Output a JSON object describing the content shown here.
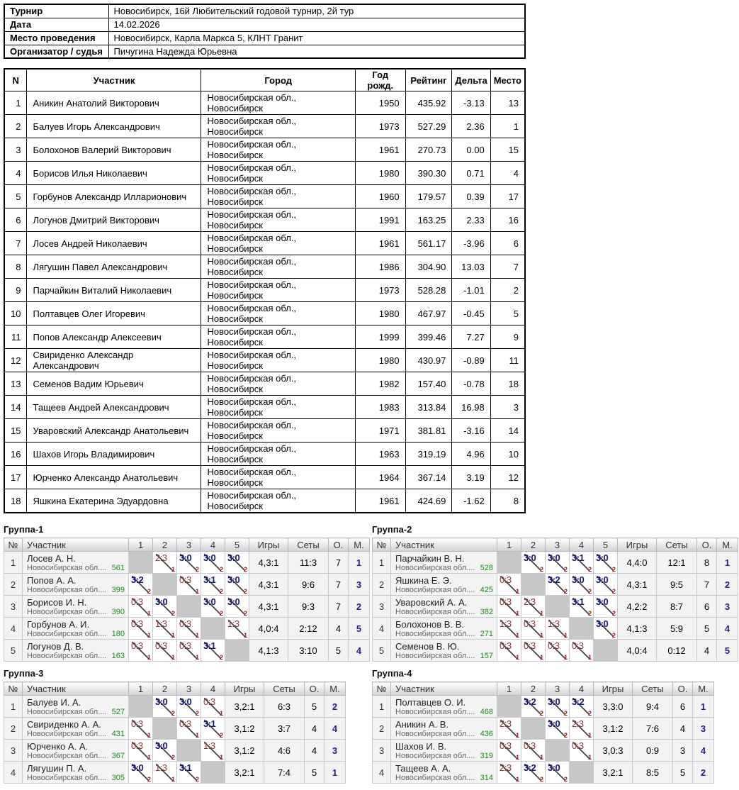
{
  "info": {
    "rows": [
      {
        "label": "Турнир",
        "value": "Новосибирск, 16й Любительский годовой турнир, 2й тур"
      },
      {
        "label": "Дата",
        "value": "14.02.2026"
      },
      {
        "label": "Место проведения",
        "value": "Новосибирск, Карла Маркса 5, КЛНТ Гранит"
      },
      {
        "label": "Организатор / судья",
        "value": "Пичугина Надежда Юрьевна"
      }
    ]
  },
  "standings": {
    "headers": [
      "N",
      "Участник",
      "Город",
      "Год рожд.",
      "Рейтинг",
      "Дельта",
      "Место"
    ],
    "rows": [
      [
        "1",
        "Аникин Анатолий Викторович",
        "Новосибирская обл., Новосибирск",
        "1950",
        "435.92",
        "-3.13",
        "13"
      ],
      [
        "2",
        "Балуев Игорь Александрович",
        "Новосибирская обл., Новосибирск",
        "1973",
        "527.29",
        "2.36",
        "1"
      ],
      [
        "3",
        "Болохонов Валерий Викторович",
        "Новосибирская обл., Новосибирск",
        "1961",
        "270.73",
        "0.00",
        "15"
      ],
      [
        "4",
        "Борисов Илья Николаевич",
        "Новосибирская обл., Новосибирск",
        "1980",
        "390.30",
        "0.71",
        "4"
      ],
      [
        "5",
        "Горбунов Александр Илларионович",
        "Новосибирская обл., Новосибирск",
        "1960",
        "179.57",
        "0.39",
        "17"
      ],
      [
        "6",
        "Логунов Дмитрий Викторович",
        "Новосибирская обл., Новосибирск",
        "1991",
        "163.25",
        "2.33",
        "16"
      ],
      [
        "7",
        "Лосев Андрей Николаевич",
        "Новосибирская обл., Новосибирск",
        "1961",
        "561.17",
        "-3.96",
        "6"
      ],
      [
        "8",
        "Лягушин Павел Александрович",
        "Новосибирская обл., Новосибирск",
        "1986",
        "304.90",
        "13.03",
        "7"
      ],
      [
        "9",
        "Парчайкин Виталий Николаевич",
        "Новосибирская обл., Новосибирск",
        "1973",
        "528.28",
        "-1.01",
        "2"
      ],
      [
        "10",
        "Полтавцев Олег Игоревич",
        "Новосибирская обл., Новосибирск",
        "1980",
        "467.97",
        "-0.45",
        "5"
      ],
      [
        "11",
        "Попов Александр Алексеевич",
        "Новосибирская обл., Новосибирск",
        "1999",
        "399.46",
        "7.27",
        "9"
      ],
      [
        "12",
        "Свириденко Александр Александрович",
        "Новосибирская обл., Новосибирск",
        "1980",
        "430.97",
        "-0.89",
        "11"
      ],
      [
        "13",
        "Семенов Вадим Юрьевич",
        "Новосибирская обл., Новосибирск",
        "1982",
        "157.40",
        "-0.78",
        "18"
      ],
      [
        "14",
        "Тащеев Андрей Александрович",
        "Новосибирская обл., Новосибирск",
        "1983",
        "313.84",
        "16.98",
        "3"
      ],
      [
        "15",
        "Уваровский Александр Анатольевич",
        "Новосибирская обл., Новосибирск",
        "1971",
        "381.81",
        "-3.16",
        "14"
      ],
      [
        "16",
        "Шахов Игорь Владимирович",
        "Новосибирская обл., Новосибирск",
        "1963",
        "319.19",
        "4.96",
        "10"
      ],
      [
        "17",
        "Юрченко Александр Анатольевич",
        "Новосибирская обл., Новосибирск",
        "1964",
        "367.14",
        "3.19",
        "12"
      ],
      [
        "18",
        "Яшкина Екатерина Эдуардовна",
        "Новосибирская обл., Новосибирск",
        "1961",
        "424.69",
        "-1.62",
        "8"
      ]
    ]
  },
  "group_columns": {
    "num": "№",
    "participant": "Участник",
    "games": "Игры",
    "sets": "Сеты",
    "points": "О.",
    "place": "М."
  },
  "colors": {
    "win_score": "#15157d",
    "loss_score": "#8d3535",
    "match_points": "#9b1515",
    "rating": "#1a8c1a",
    "place": "#22228c",
    "self_cell": "#c7c7c7"
  },
  "groups": [
    {
      "title": "Группа-1",
      "round_columns": [
        "1",
        "2",
        "3",
        "4",
        "5"
      ],
      "rows": [
        {
          "num": "1",
          "name": "Лосев А. Н.",
          "region": "Новосибирская обл....",
          "rating": "561",
          "cells": [
            null,
            {
              "score": "2:3",
              "pts": "1",
              "win": false
            },
            {
              "score": "3:0",
              "pts": "2",
              "win": true
            },
            {
              "score": "3:0",
              "pts": "2",
              "win": true
            },
            {
              "score": "3:0",
              "pts": "2",
              "win": true
            }
          ],
          "games": "4,3:1",
          "sets": "11:3",
          "points": "7",
          "place": "1"
        },
        {
          "num": "2",
          "name": "Попов А. А.",
          "region": "Новосибирская обл....",
          "rating": "399",
          "cells": [
            {
              "score": "3:2",
              "pts": "2",
              "win": true
            },
            null,
            {
              "score": "0:3",
              "pts": "1",
              "win": false
            },
            {
              "score": "3:1",
              "pts": "2",
              "win": true
            },
            {
              "score": "3:0",
              "pts": "2",
              "win": true
            }
          ],
          "games": "4,3:1",
          "sets": "9:6",
          "points": "7",
          "place": "3"
        },
        {
          "num": "3",
          "name": "Борисов И. Н.",
          "region": "Новосибирская обл....",
          "rating": "390",
          "cells": [
            {
              "score": "0:3",
              "pts": "1",
              "win": false
            },
            {
              "score": "3:0",
              "pts": "2",
              "win": true
            },
            null,
            {
              "score": "3:0",
              "pts": "2",
              "win": true
            },
            {
              "score": "3:0",
              "pts": "2",
              "win": true
            }
          ],
          "games": "4,3:1",
          "sets": "9:3",
          "points": "7",
          "place": "2"
        },
        {
          "num": "4",
          "name": "Горбунов А. И.",
          "region": "Новосибирская обл....",
          "rating": "180",
          "cells": [
            {
              "score": "0:3",
              "pts": "1",
              "win": false
            },
            {
              "score": "1:3",
              "pts": "1",
              "win": false
            },
            {
              "score": "0:3",
              "pts": "1",
              "win": false
            },
            null,
            {
              "score": "1:3",
              "pts": "1",
              "win": false
            }
          ],
          "games": "4,0:4",
          "sets": "2:12",
          "points": "4",
          "place": "5"
        },
        {
          "num": "5",
          "name": "Логунов Д. В.",
          "region": "Новосибирская обл....",
          "rating": "163",
          "cells": [
            {
              "score": "0:3",
              "pts": "1",
              "win": false
            },
            {
              "score": "0:3",
              "pts": "1",
              "win": false
            },
            {
              "score": "0:3",
              "pts": "1",
              "win": false
            },
            {
              "score": "3:1",
              "pts": "2",
              "win": true
            },
            null
          ],
          "games": "4,1:3",
          "sets": "3:10",
          "points": "5",
          "place": "4"
        }
      ]
    },
    {
      "title": "Группа-2",
      "round_columns": [
        "1",
        "2",
        "3",
        "4",
        "5"
      ],
      "rows": [
        {
          "num": "1",
          "name": "Парчайкин В. Н.",
          "region": "Новосибирская обл....",
          "rating": "528",
          "cells": [
            null,
            {
              "score": "3:0",
              "pts": "2",
              "win": true
            },
            {
              "score": "3:0",
              "pts": "2",
              "win": true
            },
            {
              "score": "3:1",
              "pts": "2",
              "win": true
            },
            {
              "score": "3:0",
              "pts": "2",
              "win": true
            }
          ],
          "games": "4,4:0",
          "sets": "12:1",
          "points": "8",
          "place": "1"
        },
        {
          "num": "2",
          "name": "Яшкина Е. Э.",
          "region": "Новосибирская обл....",
          "rating": "425",
          "cells": [
            {
              "score": "0:3",
              "pts": "1",
              "win": false
            },
            null,
            {
              "score": "3:2",
              "pts": "2",
              "win": true
            },
            {
              "score": "3:0",
              "pts": "2",
              "win": true
            },
            {
              "score": "3:0",
              "pts": "2",
              "win": true
            }
          ],
          "games": "4,3:1",
          "sets": "9:5",
          "points": "7",
          "place": "2"
        },
        {
          "num": "3",
          "name": "Уваровский А. А.",
          "region": "Новосибирская обл....",
          "rating": "382",
          "cells": [
            {
              "score": "0:3",
              "pts": "1",
              "win": false
            },
            {
              "score": "2:3",
              "pts": "1",
              "win": false
            },
            null,
            {
              "score": "3:1",
              "pts": "2",
              "win": true
            },
            {
              "score": "3:0",
              "pts": "2",
              "win": true
            }
          ],
          "games": "4,2:2",
          "sets": "8:7",
          "points": "6",
          "place": "3"
        },
        {
          "num": "4",
          "name": "Болохонов В. В.",
          "region": "Новосибирская обл....",
          "rating": "271",
          "cells": [
            {
              "score": "1:3",
              "pts": "1",
              "win": false
            },
            {
              "score": "0:3",
              "pts": "1",
              "win": false
            },
            {
              "score": "1:3",
              "pts": "1",
              "win": false
            },
            null,
            {
              "score": "3:0",
              "pts": "2",
              "win": true
            }
          ],
          "games": "4,1:3",
          "sets": "5:9",
          "points": "5",
          "place": "4"
        },
        {
          "num": "5",
          "name": "Семенов В. Ю.",
          "region": "Новосибирская обл....",
          "rating": "157",
          "cells": [
            {
              "score": "0:3",
              "pts": "1",
              "win": false
            },
            {
              "score": "0:3",
              "pts": "1",
              "win": false
            },
            {
              "score": "0:3",
              "pts": "1",
              "win": false
            },
            {
              "score": "0:3",
              "pts": "1",
              "win": false
            },
            null
          ],
          "games": "4,0:4",
          "sets": "0:12",
          "points": "4",
          "place": "5"
        }
      ]
    },
    {
      "title": "Группа-3",
      "round_columns": [
        "1",
        "2",
        "3",
        "4"
      ],
      "rows": [
        {
          "num": "1",
          "name": "Балуев И. А.",
          "region": "Новосибирская обл....",
          "rating": "527",
          "cells": [
            null,
            {
              "score": "3:0",
              "pts": "2",
              "win": true
            },
            {
              "score": "3:0",
              "pts": "2",
              "win": true
            },
            {
              "score": "0:3",
              "pts": "1",
              "win": false
            }
          ],
          "games": "3,2:1",
          "sets": "6:3",
          "points": "5",
          "place": "2"
        },
        {
          "num": "2",
          "name": "Свириденко А. А.",
          "region": "Новосибирская обл....",
          "rating": "431",
          "cells": [
            {
              "score": "0:3",
              "pts": "1",
              "win": false
            },
            null,
            {
              "score": "0:3",
              "pts": "1",
              "win": false
            },
            {
              "score": "3:1",
              "pts": "2",
              "win": true
            }
          ],
          "games": "3,1:2",
          "sets": "3:7",
          "points": "4",
          "place": "4"
        },
        {
          "num": "3",
          "name": "Юрченко А. А.",
          "region": "Новосибирская обл....",
          "rating": "367",
          "cells": [
            {
              "score": "0:3",
              "pts": "1",
              "win": false
            },
            {
              "score": "3:0",
              "pts": "2",
              "win": true
            },
            null,
            {
              "score": "1:3",
              "pts": "1",
              "win": false
            }
          ],
          "games": "3,1:2",
          "sets": "4:6",
          "points": "4",
          "place": "3"
        },
        {
          "num": "4",
          "name": "Лягушин П. А.",
          "region": "Новосибирская обл....",
          "rating": "305",
          "cells": [
            {
              "score": "3:0",
              "pts": "2",
              "win": true
            },
            {
              "score": "1:3",
              "pts": "1",
              "win": false
            },
            {
              "score": "3:1",
              "pts": "2",
              "win": true
            },
            null
          ],
          "games": "3,2:1",
          "sets": "7:4",
          "points": "5",
          "place": "1"
        }
      ]
    },
    {
      "title": "Группа-4",
      "round_columns": [
        "1",
        "2",
        "3",
        "4"
      ],
      "rows": [
        {
          "num": "1",
          "name": "Полтавцев О. И.",
          "region": "Новосибирская обл....",
          "rating": "468",
          "cells": [
            null,
            {
              "score": "3:2",
              "pts": "2",
              "win": true
            },
            {
              "score": "3:0",
              "pts": "2",
              "win": true
            },
            {
              "score": "3:2",
              "pts": "2",
              "win": true
            }
          ],
          "games": "3,3:0",
          "sets": "9:4",
          "points": "6",
          "place": "1"
        },
        {
          "num": "2",
          "name": "Аникин А. В.",
          "region": "Новосибирская обл....",
          "rating": "436",
          "cells": [
            {
              "score": "2:3",
              "pts": "1",
              "win": false
            },
            null,
            {
              "score": "3:0",
              "pts": "2",
              "win": true
            },
            {
              "score": "2:3",
              "pts": "1",
              "win": false
            }
          ],
          "games": "3,1:2",
          "sets": "7:6",
          "points": "4",
          "place": "3"
        },
        {
          "num": "3",
          "name": "Шахов И. В.",
          "region": "Новосибирская обл....",
          "rating": "319",
          "cells": [
            {
              "score": "0:3",
              "pts": "1",
              "win": false
            },
            {
              "score": "0:3",
              "pts": "1",
              "win": false
            },
            null,
            {
              "score": "0:3",
              "pts": "1",
              "win": false
            }
          ],
          "games": "3,0:3",
          "sets": "0:9",
          "points": "3",
          "place": "4"
        },
        {
          "num": "4",
          "name": "Тащеев А. А.",
          "region": "Новосибирская обл....",
          "rating": "314",
          "cells": [
            {
              "score": "2:3",
              "pts": "1",
              "win": false
            },
            {
              "score": "3:2",
              "pts": "2",
              "win": true
            },
            {
              "score": "3:0",
              "pts": "2",
              "win": true
            },
            null
          ],
          "games": "3,2:1",
          "sets": "8:5",
          "points": "5",
          "place": "2"
        }
      ]
    }
  ]
}
